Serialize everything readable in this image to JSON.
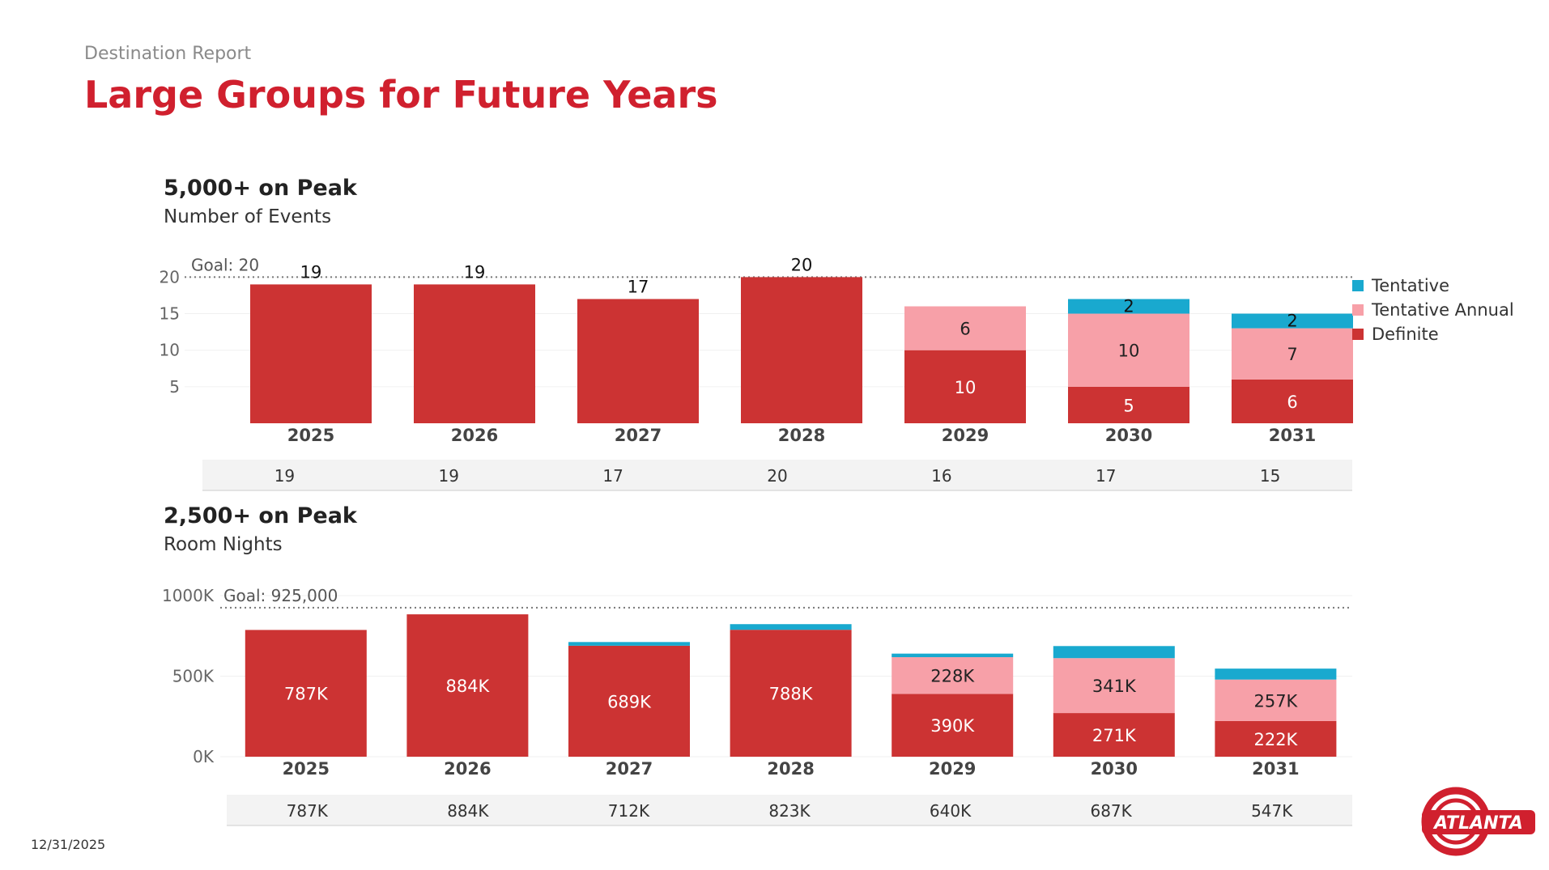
{
  "report_label": "Destination Report",
  "title": "Large Groups for Future Years",
  "date": "12/31/2025",
  "logo_text": "ATLANTA",
  "colors": {
    "definite": "#cc3333",
    "tentative_annual": "#f7a0a8",
    "tentative": "#19a9cf",
    "title": "#d0202e"
  },
  "legend": [
    "Tentative",
    "Tentative Annual",
    "Definite"
  ],
  "chart_data": [
    {
      "type": "bar",
      "stacked": true,
      "title": "5,000+ on Peak",
      "subtitle": "Number of Events",
      "categories": [
        "2025",
        "2026",
        "2027",
        "2028",
        "2029",
        "2030",
        "2031"
      ],
      "series": [
        {
          "name": "Definite",
          "values": [
            19,
            19,
            17,
            20,
            10,
            5,
            6
          ],
          "labels": [
            "19",
            "19",
            "17",
            "20",
            "10",
            "5",
            "6"
          ]
        },
        {
          "name": "Tentative Annual",
          "values": [
            0,
            0,
            0,
            0,
            6,
            10,
            7
          ],
          "labels": [
            "",
            "",
            "",
            "",
            "6",
            "10",
            "7"
          ]
        },
        {
          "name": "Tentative",
          "values": [
            0,
            0,
            0,
            0,
            0,
            2,
            2
          ],
          "labels": [
            "",
            "",
            "",
            "",
            "",
            "2",
            "2"
          ]
        }
      ],
      "totals": [
        "19",
        "19",
        "17",
        "20",
        "16",
        "17",
        "15"
      ],
      "goal": 20,
      "goal_label": "Goal: 20",
      "ylim": [
        0,
        25
      ],
      "yticks": [
        5,
        10,
        15,
        20
      ],
      "yticklabels": [
        "5",
        "10",
        "15",
        "20"
      ],
      "legend_position": "right"
    },
    {
      "type": "bar",
      "stacked": true,
      "title": "2,500+ on Peak",
      "subtitle": "Room Nights",
      "categories": [
        "2025",
        "2026",
        "2027",
        "2028",
        "2029",
        "2030",
        "2031"
      ],
      "series": [
        {
          "name": "Definite",
          "values": [
            787000,
            884000,
            689000,
            788000,
            390000,
            271000,
            222000
          ],
          "labels": [
            "787K",
            "884K",
            "689K",
            "788K",
            "390K",
            "271K",
            "222K"
          ]
        },
        {
          "name": "Tentative Annual",
          "values": [
            0,
            0,
            0,
            0,
            228000,
            341000,
            257000
          ],
          "labels": [
            "",
            "",
            "",
            "",
            "228K",
            "341K",
            "257K"
          ]
        },
        {
          "name": "Tentative",
          "values": [
            0,
            0,
            23000,
            35000,
            22000,
            75000,
            68000
          ],
          "labels": [
            "",
            "",
            "",
            "",
            "",
            "",
            ""
          ]
        }
      ],
      "totals": [
        "787K",
        "884K",
        "712K",
        "823K",
        "640K",
        "687K",
        "547K"
      ],
      "goal": 925000,
      "goal_label": "Goal: 925,000",
      "ylim": [
        0,
        1100000
      ],
      "yticks": [
        0,
        500000,
        1000000
      ],
      "yticklabels": [
        "0K",
        "500K",
        "1000K"
      ]
    }
  ]
}
